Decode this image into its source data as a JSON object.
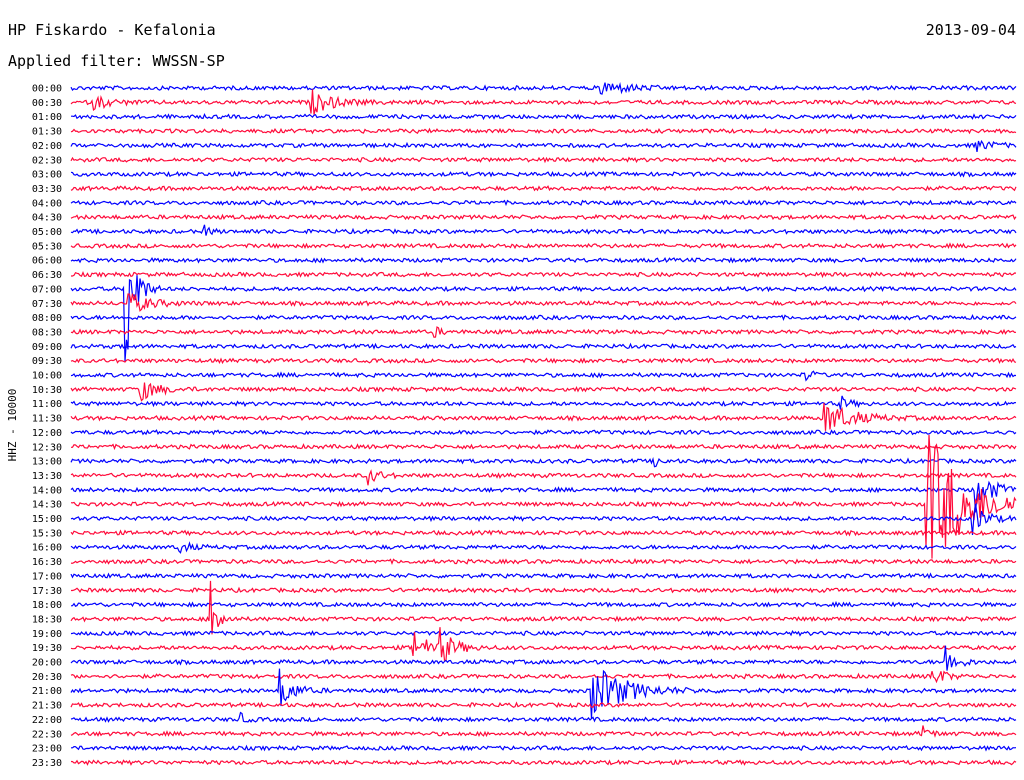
{
  "station_title": "HP Fiskardo - Kefalonia",
  "date": "2013-09-04",
  "filter_label": "Applied filter: WWSSN-SP",
  "channel_label": "HHZ - 10000",
  "colors": {
    "blue": "#0000ff",
    "red": "#ff0a3a",
    "text": "#000000",
    "background": "#ffffff"
  },
  "chart_data": {
    "type": "line",
    "title": "HP Fiskardo - Kefalonia",
    "subtitle": "Applied filter: WWSSN-SP",
    "ylabel": "HHZ - 10000",
    "date": "2013-09-04",
    "rows": [
      "00:00",
      "00:30",
      "01:00",
      "01:30",
      "02:00",
      "02:30",
      "03:00",
      "03:30",
      "04:00",
      "04:30",
      "05:00",
      "05:30",
      "06:00",
      "06:30",
      "07:00",
      "07:30",
      "08:00",
      "08:30",
      "09:00",
      "09:30",
      "10:00",
      "10:30",
      "11:00",
      "11:30",
      "12:00",
      "12:30",
      "13:00",
      "13:30",
      "14:00",
      "14:30",
      "15:00",
      "15:30",
      "16:00",
      "16:30",
      "17:00",
      "17:30",
      "18:00",
      "18:30",
      "19:00",
      "19:30",
      "20:00",
      "20:30",
      "21:00",
      "21:30",
      "22:00",
      "22:30",
      "23:00",
      "23:30"
    ],
    "row_colors": [
      "blue",
      "red"
    ],
    "trace_minutes": 30,
    "events": [
      {
        "row": "00:00",
        "minute": 16.8,
        "amp": 0.55,
        "dur": 1.2
      },
      {
        "row": "00:30",
        "minute": 0.7,
        "amp": 0.5,
        "dur": 0.8
      },
      {
        "row": "00:30",
        "minute": 7.6,
        "amp": 0.9,
        "dur": 1.0
      },
      {
        "row": "02:00",
        "minute": 28.7,
        "amp": 0.4,
        "dur": 0.8
      },
      {
        "row": "05:00",
        "minute": 4.2,
        "amp": 0.5,
        "dur": 0.3
      },
      {
        "row": "07:00",
        "minute": 1.7,
        "amp": 8.5,
        "dur": 0.4
      },
      {
        "row": "07:30",
        "minute": 1.8,
        "amp": 0.8,
        "dur": 1.0
      },
      {
        "row": "08:30",
        "minute": 11.5,
        "amp": 0.45,
        "dur": 0.3
      },
      {
        "row": "10:00",
        "minute": 23.3,
        "amp": 0.6,
        "dur": 0.3
      },
      {
        "row": "10:30",
        "minute": 2.1,
        "amp": 1.0,
        "dur": 0.8
      },
      {
        "row": "11:00",
        "minute": 24.4,
        "amp": 0.6,
        "dur": 0.4
      },
      {
        "row": "11:30",
        "minute": 23.9,
        "amp": 1.2,
        "dur": 1.3
      },
      {
        "row": "13:00",
        "minute": 18.5,
        "amp": 0.5,
        "dur": 0.3
      },
      {
        "row": "13:30",
        "minute": 9.4,
        "amp": 0.7,
        "dur": 0.5
      },
      {
        "row": "14:00",
        "minute": 28.7,
        "amp": 1.6,
        "dur": 0.8
      },
      {
        "row": "14:30",
        "minute": 27.1,
        "amp": 6.0,
        "dur": 1.8
      },
      {
        "row": "15:00",
        "minute": 28.6,
        "amp": 1.3,
        "dur": 0.6
      },
      {
        "row": "16:00",
        "minute": 3.4,
        "amp": 0.5,
        "dur": 0.5
      },
      {
        "row": "18:30",
        "minute": 4.4,
        "amp": 4.2,
        "dur": 0.3
      },
      {
        "row": "19:30",
        "minute": 10.8,
        "amp": 1.5,
        "dur": 0.7
      },
      {
        "row": "19:30",
        "minute": 11.7,
        "amp": 1.2,
        "dur": 0.7
      },
      {
        "row": "20:00",
        "minute": 27.7,
        "amp": 1.5,
        "dur": 0.5
      },
      {
        "row": "20:30",
        "minute": 27.3,
        "amp": 1.0,
        "dur": 0.5
      },
      {
        "row": "21:00",
        "minute": 6.6,
        "amp": 1.6,
        "dur": 0.6
      },
      {
        "row": "21:00",
        "minute": 16.5,
        "amp": 2.2,
        "dur": 1.5
      },
      {
        "row": "22:00",
        "minute": 5.3,
        "amp": 0.6,
        "dur": 0.3
      },
      {
        "row": "22:30",
        "minute": 27.0,
        "amp": 0.6,
        "dur": 0.4
      }
    ]
  }
}
